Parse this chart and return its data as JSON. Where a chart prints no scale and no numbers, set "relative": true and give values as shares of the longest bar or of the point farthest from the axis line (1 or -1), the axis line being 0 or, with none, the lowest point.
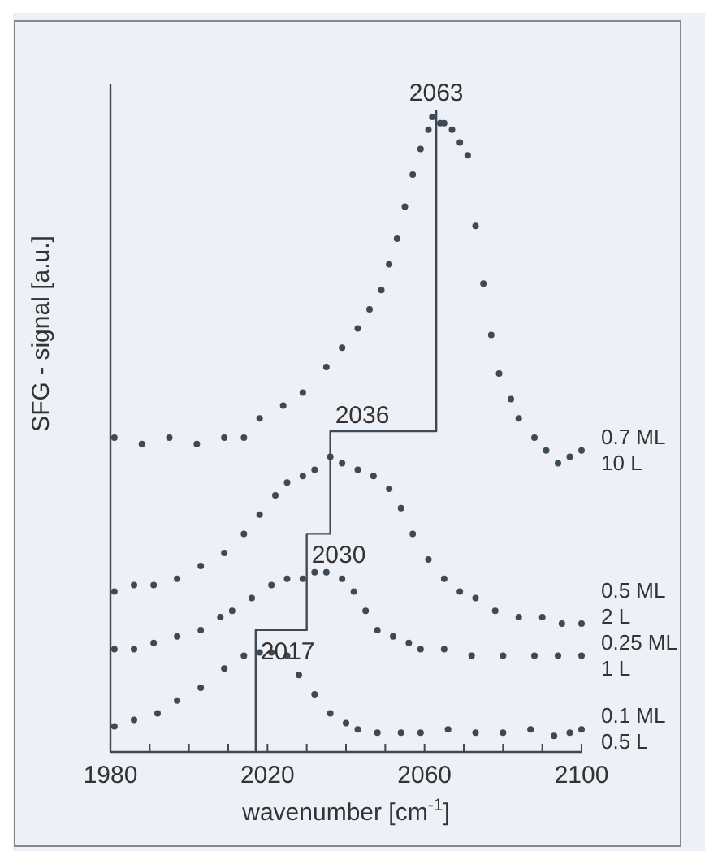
{
  "chart_data": {
    "type": "scatter",
    "relative": true,
    "xlabel": "wavenumber [cm$^{-1}$]",
    "ylabel": "SFG - signal [a.u.]",
    "xlim": [
      1980,
      2100
    ],
    "xticks": [
      1980,
      {
        "value": 1990,
        "label": null
      },
      {
        "value": 2000,
        "label": null
      },
      {
        "value": 2010,
        "label": null
      },
      2020,
      {
        "value": 2030,
        "label": null
      },
      {
        "value": 2040,
        "label": null
      },
      {
        "value": 2050,
        "label": null
      },
      2060,
      {
        "value": 2070,
        "label": null
      },
      {
        "value": 2080,
        "label": null
      },
      {
        "value": 2090,
        "label": null
      },
      2100
    ],
    "marker": "circle",
    "series": [
      {
        "name": "0.7 ML\n10 L",
        "color": "#3d4a55",
        "x": [
          1981,
          1988,
          1995,
          2002,
          2009,
          2014,
          2018,
          2024,
          2029,
          2035,
          2039,
          2043,
          2046,
          2049,
          2051,
          2053,
          2055,
          2057,
          2059,
          2061,
          2062,
          2064,
          2065,
          2067,
          2069,
          2071,
          2073,
          2075,
          2077,
          2079,
          2082,
          2084,
          2088,
          2091,
          2094,
          2097,
          2100
        ],
        "values": [
          0.49,
          0.48,
          0.49,
          0.48,
          0.49,
          0.49,
          0.52,
          0.54,
          0.56,
          0.6,
          0.63,
          0.66,
          0.69,
          0.72,
          0.76,
          0.8,
          0.85,
          0.9,
          0.94,
          0.97,
          0.99,
          0.98,
          0.98,
          0.97,
          0.95,
          0.93,
          0.82,
          0.73,
          0.65,
          0.59,
          0.55,
          0.52,
          0.49,
          0.47,
          0.45,
          0.46,
          0.47
        ]
      },
      {
        "name": "0.5 ML\n2 L",
        "color": "#3d4a55",
        "x": [
          1981,
          1986,
          1991,
          1997,
          2003,
          2009,
          2014,
          2018,
          2022,
          2025,
          2029,
          2032,
          2036,
          2039,
          2043,
          2047,
          2051,
          2054,
          2057,
          2061,
          2065,
          2069,
          2073,
          2078,
          2084,
          2090,
          2095,
          2100
        ],
        "values": [
          0.25,
          0.26,
          0.26,
          0.27,
          0.29,
          0.31,
          0.34,
          0.37,
          0.4,
          0.42,
          0.43,
          0.44,
          0.46,
          0.45,
          0.44,
          0.43,
          0.41,
          0.38,
          0.34,
          0.3,
          0.27,
          0.25,
          0.24,
          0.22,
          0.21,
          0.21,
          0.2,
          0.2
        ]
      },
      {
        "name": "0.25 ML\n1 L",
        "color": "#3d4a55",
        "x": [
          1981,
          1986,
          1991,
          1997,
          2003,
          2008,
          2011,
          2016,
          2021,
          2025,
          2029,
          2032,
          2035,
          2039,
          2042,
          2045,
          2048,
          2052,
          2056,
          2059,
          2065,
          2072,
          2080,
          2088,
          2094,
          2100
        ],
        "values": [
          0.16,
          0.16,
          0.17,
          0.18,
          0.19,
          0.21,
          0.22,
          0.24,
          0.26,
          0.27,
          0.27,
          0.28,
          0.28,
          0.27,
          0.25,
          0.22,
          0.19,
          0.18,
          0.17,
          0.16,
          0.16,
          0.15,
          0.15,
          0.15,
          0.15,
          0.15
        ]
      },
      {
        "name": "0.1 ML\n0.5 L",
        "color": "#3d4a55",
        "x": [
          1981,
          1986,
          1992,
          1997,
          2003,
          2009,
          2014,
          2018,
          2021,
          2025,
          2028,
          2032,
          2036,
          2040,
          2043,
          2048,
          2054,
          2059,
          2066,
          2073,
          2080,
          2087,
          2093,
          2097,
          2100
        ],
        "values": [
          0.04,
          0.05,
          0.06,
          0.08,
          0.1,
          0.13,
          0.15,
          0.155,
          0.155,
          0.15,
          0.12,
          0.09,
          0.06,
          0.045,
          0.035,
          0.03,
          0.03,
          0.03,
          0.035,
          0.03,
          0.03,
          0.035,
          0.025,
          0.03,
          0.035
        ]
      },
      {
        "type": "line",
        "marker": "none",
        "color": "#3d4a55",
        "x": [
          2063,
          2063,
          2036,
          2036,
          2030,
          2030,
          2017,
          2017
        ],
        "values": [
          1,
          0.5,
          0.5,
          0.34,
          0.34,
          0.19,
          0.19,
          0
        ]
      }
    ],
    "annotations": [
      "2063",
      "2036",
      "2030",
      "2017"
    ]
  }
}
